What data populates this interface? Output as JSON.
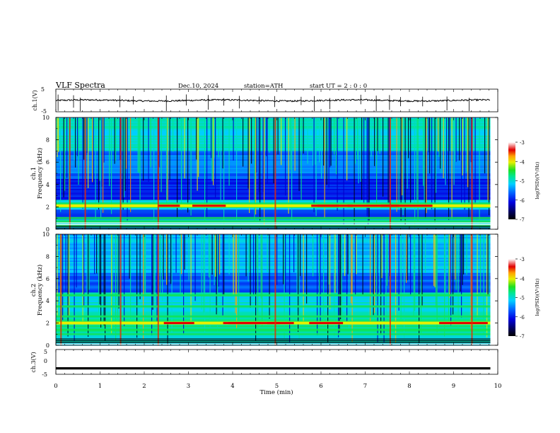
{
  "header": {
    "title": "VLF  Spectra",
    "date": "Dec.10, 2024",
    "station": "station=ATH",
    "start": "start  UT  =   2  : 0   : 0"
  },
  "colors": {
    "spectrum_scale": [
      "#000040",
      "#0000c8",
      "#0050ff",
      "#00b4ff",
      "#00e6d2",
      "#14e650",
      "#c8f000",
      "#ffb400",
      "#e61e00",
      "#8c0000",
      "#ffe0e0"
    ]
  },
  "chart_data": [
    {
      "type": "line",
      "name": "ch1-waveform",
      "ylabel": "ch.1(V)",
      "ylim": [
        -5,
        5
      ],
      "yticks": [
        "5",
        "-5"
      ],
      "xlim": [
        0,
        10
      ],
      "baseline": 0,
      "noise_level": 0.35,
      "spikes": [
        0.05,
        0.4,
        0.55,
        1.45,
        1.75,
        2.5,
        2.95,
        3.45,
        3.8,
        4.15,
        4.6,
        4.95,
        5.55,
        5.85,
        6.2,
        6.9,
        7.25,
        7.55,
        7.8,
        8.3,
        8.85,
        9.35
      ]
    },
    {
      "type": "heatmap",
      "name": "ch1-spectrogram",
      "ylabel": "ch.1",
      "ylabel2": "Frequency  (kHz)",
      "ylim": [
        0,
        10
      ],
      "yticks": [
        "10",
        "8",
        "6",
        "4",
        "2",
        "0"
      ],
      "xlim": [
        0,
        10
      ],
      "colorbar": {
        "label": "log(PSD)(V²/Hz)",
        "range": [
          -7,
          -3
        ],
        "ticks": [
          "-3",
          "-4",
          "-5",
          "-6",
          "-7"
        ]
      },
      "bands_khz": [
        0.3,
        0.7,
        1.0,
        2.0,
        2.3
      ],
      "tone_khz": 2.1,
      "bright_columns_min": [
        0.3,
        0.65,
        1.45,
        2.3,
        4.95,
        7.55,
        9.4
      ]
    },
    {
      "type": "heatmap",
      "name": "ch2-spectrogram",
      "ylabel": "ch.2",
      "ylabel2": "Frequency  (kHz)",
      "ylim": [
        0,
        10
      ],
      "yticks": [
        "10",
        "8",
        "6",
        "4",
        "2",
        "0"
      ],
      "xlim": [
        0,
        10
      ],
      "colorbar": {
        "label": "log(PSD)(V²/Hz)",
        "range": [
          -7,
          -3
        ],
        "ticks": [
          "-3",
          "-4",
          "-5",
          "-6",
          "-7"
        ]
      },
      "bands_khz": [
        1.0,
        1.4,
        2.1,
        2.6,
        3.5,
        4.5
      ],
      "tone_khz": 2.0,
      "bright_columns_min": [
        0.1,
        1.45,
        2.3,
        4.95,
        7.55,
        9.4
      ]
    },
    {
      "type": "line",
      "name": "ch3-waveform",
      "ylabel": "ch.3(V)",
      "ylim": [
        -5,
        5
      ],
      "yticks": [
        "5",
        "0",
        "-5"
      ],
      "xlim": [
        0,
        10
      ],
      "constant": -2.6
    }
  ],
  "xaxis": {
    "label": "Time  (min)",
    "ticks": [
      "0",
      "1",
      "2",
      "3",
      "4",
      "5",
      "6",
      "7",
      "8",
      "9",
      "10"
    ]
  }
}
